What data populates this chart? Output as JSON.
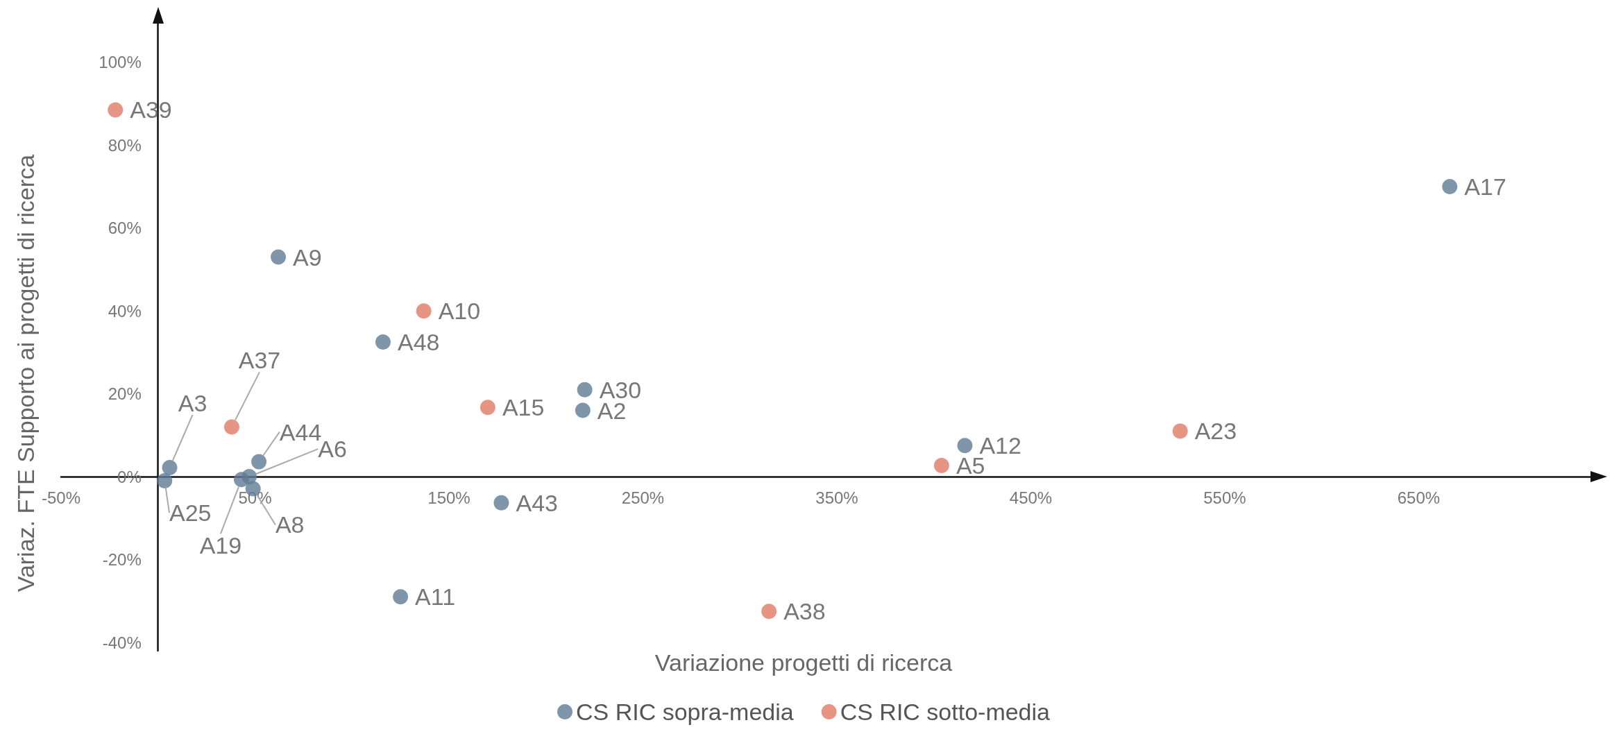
{
  "chart_data": {
    "type": "scatter",
    "xlabel": "Variazione progetti di ricerca",
    "ylabel": "Variaz. FTE Supporto ai progetti di ricerca",
    "xlim": [
      -50,
      740
    ],
    "ylim": [
      -42,
      110
    ],
    "xticks": [
      {
        "value": -50,
        "label": "-50%"
      },
      {
        "value": 50,
        "label": "50%"
      },
      {
        "value": 150,
        "label": "150%"
      },
      {
        "value": 250,
        "label": "250%"
      },
      {
        "value": 350,
        "label": "350%"
      },
      {
        "value": 450,
        "label": "450%"
      },
      {
        "value": 550,
        "label": "550%"
      },
      {
        "value": 650,
        "label": "650%"
      }
    ],
    "yticks": [
      {
        "value": -40,
        "label": "-40%"
      },
      {
        "value": -20,
        "label": "-20%"
      },
      {
        "value": 0,
        "label": "0%"
      },
      {
        "value": 20,
        "label": "20%"
      },
      {
        "value": 40,
        "label": "40%"
      },
      {
        "value": 60,
        "label": "60%"
      },
      {
        "value": 80,
        "label": "80%"
      },
      {
        "value": 100,
        "label": "100%"
      }
    ],
    "grid": false,
    "legend": "bottom",
    "marker": "circle",
    "series": [
      {
        "name": "CS RIC sopra-media",
        "color": "#5f7b93",
        "x": [
          666,
          62,
          116,
          220,
          219,
          416,
          177,
          125,
          6,
          3.4,
          52,
          47,
          43,
          49
        ],
        "values": [
          70,
          53,
          32.5,
          21,
          16,
          7.5,
          -6.3,
          -29,
          2.2,
          -1,
          3.6,
          0,
          -0.7,
          -2.9
        ]
      },
      {
        "name": "CS RIC sotto-media",
        "color": "#e07a66",
        "x": [
          -22,
          137,
          170,
          38,
          527,
          404,
          315
        ],
        "values": [
          88.5,
          40,
          16.7,
          12,
          11,
          2.7,
          -32.5
        ]
      }
    ],
    "annotations": [
      {
        "text": "A17",
        "x": 666,
        "y": 70
      },
      {
        "text": "A9",
        "x": 62,
        "y": 53
      },
      {
        "text": "A48",
        "x": 116,
        "y": 32.5
      },
      {
        "text": "A30",
        "x": 220,
        "y": 21
      },
      {
        "text": "A2",
        "x": 219,
        "y": 16
      },
      {
        "text": "A12",
        "x": 416,
        "y": 7.5
      },
      {
        "text": "A43",
        "x": 177,
        "y": -6.3
      },
      {
        "text": "A11",
        "x": 125,
        "y": -29
      },
      {
        "text": "A3",
        "x": 6,
        "y": 2.2
      },
      {
        "text": "A25",
        "x": 3.4,
        "y": -1
      },
      {
        "text": "A44",
        "x": 52,
        "y": 3.6
      },
      {
        "text": "A6",
        "x": 47,
        "y": 0
      },
      {
        "text": "A19",
        "x": 43,
        "y": -0.7
      },
      {
        "text": "A8",
        "x": 49,
        "y": -2.9
      },
      {
        "text": "A39",
        "x": -22,
        "y": 88.5
      },
      {
        "text": "A10",
        "x": 137,
        "y": 40
      },
      {
        "text": "A15",
        "x": 170,
        "y": 16.7
      },
      {
        "text": "A37",
        "x": 38,
        "y": 12
      },
      {
        "text": "A23",
        "x": 527,
        "y": 11
      },
      {
        "text": "A5",
        "x": 404,
        "y": 2.7
      },
      {
        "text": "A38",
        "x": 315,
        "y": -32.5
      }
    ]
  }
}
